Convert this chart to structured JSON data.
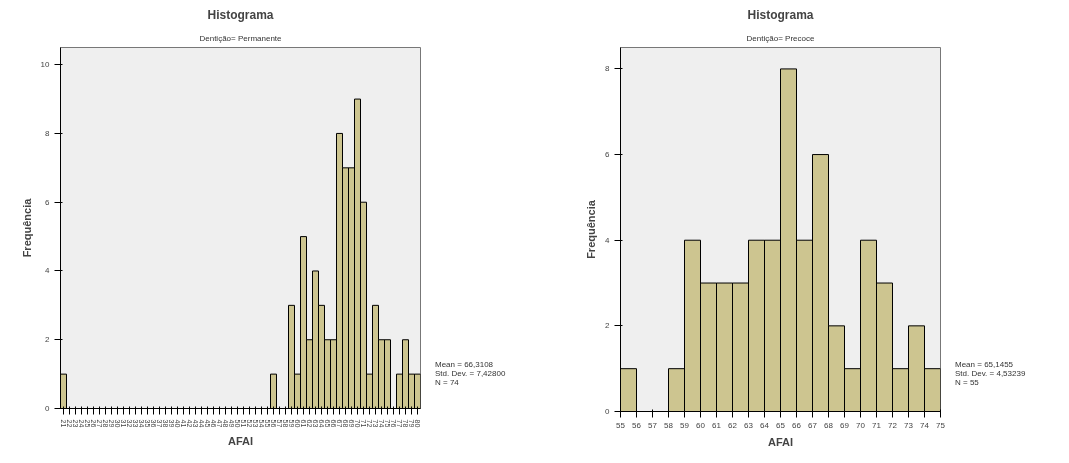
{
  "chart_data": [
    {
      "type": "histogram",
      "title": "Histograma",
      "subtitle": "Dentição= Permanente",
      "xlabel": "AFAI",
      "ylabel": "Frequência",
      "bins": [
        20.5,
        21.5,
        22.5,
        23.5,
        24.5,
        25.5,
        26.5,
        27.5,
        28.5,
        29.5,
        30.5,
        31.5,
        32.5,
        33.5,
        34.5,
        35.5,
        36.5,
        37.5,
        38.5,
        39.5,
        40.5,
        41.5,
        42.5,
        43.5,
        44.5,
        45.5,
        46.5,
        47.5,
        48.5,
        49.5,
        50.5,
        51.5,
        52.5,
        53.5,
        54.5,
        55.5,
        56.5,
        57.5,
        58.5,
        59.5,
        60.5,
        61.5,
        62.5,
        63.5,
        64.5,
        65.5,
        66.5,
        67.5,
        68.5,
        69.5,
        70.5,
        71.5,
        72.5,
        73.5,
        74.5,
        75.5,
        76.5,
        77.5,
        78.5,
        79.5,
        80.5
      ],
      "values": [
        1,
        0,
        0,
        0,
        0,
        0,
        0,
        0,
        0,
        0,
        0,
        0,
        0,
        0,
        0,
        0,
        0,
        0,
        0,
        0,
        0,
        0,
        0,
        0,
        0,
        0,
        0,
        0,
        0,
        0,
        0,
        0,
        0,
        0,
        0,
        1,
        0,
        0,
        3,
        1,
        5,
        2,
        4,
        3,
        2,
        2,
        8,
        7,
        7,
        9,
        6,
        1,
        3,
        2,
        2,
        0,
        1,
        2,
        1,
        1
      ],
      "color": "#cdc590",
      "xlim": [
        20.5,
        80.5
      ],
      "ylim": [
        0,
        10.5
      ],
      "xticks": [
        21,
        22,
        23,
        24,
        25,
        26,
        27,
        28,
        29,
        30,
        31,
        32,
        33,
        34,
        35,
        36,
        37,
        38,
        39,
        40,
        41,
        42,
        43,
        44,
        45,
        46,
        47,
        48,
        49,
        50,
        51,
        52,
        53,
        54,
        55,
        56,
        57,
        58,
        59,
        60,
        61,
        62,
        63,
        64,
        65,
        66,
        67,
        68,
        69,
        70,
        71,
        72,
        73,
        74,
        75,
        76,
        77,
        78,
        79,
        80
      ],
      "yticks": [
        0,
        2,
        4,
        6,
        8,
        10
      ],
      "grid": false,
      "annotations": [
        "Mean = 66,3108\nStd. Dev. = 7,42800\nN = 74"
      ]
    },
    {
      "type": "histogram",
      "title": "Histograma",
      "subtitle": "Dentição= Precoce",
      "xlabel": "AFAI",
      "ylabel": "Frequência",
      "bins": [
        55,
        56,
        57,
        58,
        59,
        60,
        61,
        62,
        63,
        64,
        65,
        66,
        67,
        68,
        69,
        70,
        71,
        72,
        73,
        74,
        75
      ],
      "values": [
        1,
        0,
        0,
        1,
        4,
        3,
        3,
        3,
        4,
        4,
        8,
        4,
        6,
        2,
        1,
        4,
        3,
        1,
        2,
        1
      ],
      "color": "#cdc590",
      "xlim": [
        55,
        75
      ],
      "ylim": [
        0,
        8.5
      ],
      "xticks": [
        55,
        56,
        57,
        58,
        59,
        60,
        61,
        62,
        63,
        64,
        65,
        66,
        67,
        68,
        69,
        70,
        71,
        72,
        73,
        74,
        75
      ],
      "yticks": [
        0,
        2,
        4,
        6,
        8
      ],
      "grid": false,
      "annotations": [
        "Mean = 65,1455\nStd. Dev. = 4,53239\nN = 55"
      ]
    }
  ]
}
